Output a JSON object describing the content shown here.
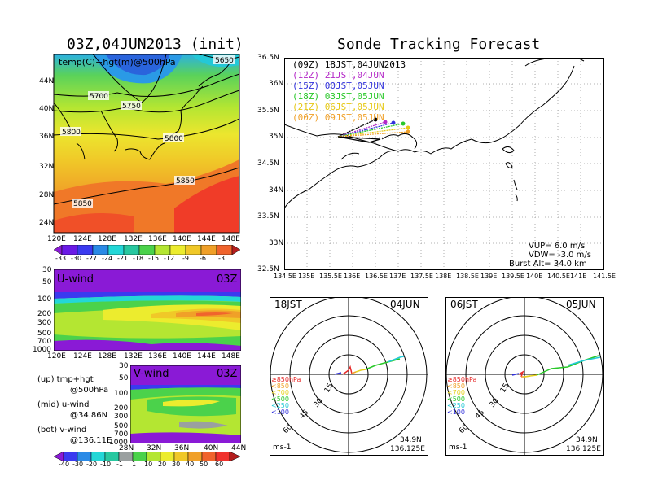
{
  "titles": {
    "left": "03Z,04JUN2013 (init)",
    "right": "Sonde Tracking Forecast"
  },
  "panel_tl": {
    "overlay_label": "temp(C)+hgt(m)@500hPa",
    "contours": [
      "5650",
      "5700",
      "5750",
      "5800",
      "5800",
      "5850",
      "5850"
    ],
    "lon_ticks": [
      "120E",
      "124E",
      "128E",
      "132E",
      "136E",
      "140E",
      "144E",
      "148E"
    ],
    "lat_ticks": [
      "44N",
      "40N",
      "36N",
      "32N",
      "28N",
      "24N"
    ],
    "colorbar_ticks": [
      "-33",
      "-30",
      "-27",
      "-24",
      "-21",
      "-18",
      "-15",
      "-12",
      "-9",
      "-6",
      "-3"
    ]
  },
  "panel_uwind": {
    "label_left": "U-wind",
    "label_right": "03Z",
    "lon_ticks": [
      "120E",
      "124E",
      "128E",
      "132E",
      "136E",
      "140E",
      "144E",
      "148E"
    ],
    "p_ticks": [
      "30",
      "50",
      "100",
      "200",
      "300",
      "500",
      "700",
      "1000"
    ]
  },
  "panel_vwind": {
    "label_left": "V-wind",
    "label_right": "03Z",
    "lat_ticks": [
      "28N",
      "32N",
      "36N",
      "40N",
      "44N"
    ],
    "p_ticks": [
      "30",
      "50",
      "100",
      "200",
      "300",
      "500",
      "700",
      "1000"
    ],
    "colorbar_ticks": [
      "-40",
      "-30",
      "-20",
      "-10",
      "-1",
      "1",
      "10",
      "20",
      "30",
      "40",
      "50",
      "60"
    ]
  },
  "legend_left": {
    "lines": [
      "(up) tmp+hgt",
      "@500hPa",
      "(mid) u-wind",
      "@34.86N",
      "(bot) v-wind",
      "@136.11E"
    ]
  },
  "colors": {
    "purple": "#8a1ad6",
    "blue": "#3a3af0",
    "cyan": "#23d7d7",
    "green": "#4bd24b",
    "yellow_green": "#b4e632",
    "yellow": "#ecec2e",
    "orange": "#f0a028",
    "red": "#f0322d",
    "dark_red": "#b41e1e"
  },
  "map": {
    "lon_ticks": [
      "134.5E",
      "135E",
      "135.5E",
      "136E",
      "136.5E",
      "137E",
      "137.5E",
      "138E",
      "138.5E",
      "139E",
      "139.5E",
      "140E",
      "140.5E",
      "141E",
      "141.5E"
    ],
    "lat_ticks": [
      "36.5N",
      "36N",
      "35.5N",
      "35N",
      "34.5N",
      "34N",
      "33.5N",
      "33N",
      "32.5N"
    ],
    "legend": [
      {
        "label": "(09Z)  18JST,04JUN2013",
        "color": "#000000"
      },
      {
        "label": "(12Z)  21JST,04JUN",
        "color": "#b428c8"
      },
      {
        "label": "(15Z)  00JST,05JUN",
        "color": "#3232dc"
      },
      {
        "label": "(18Z)  03JST,05JUN",
        "color": "#28c828"
      },
      {
        "label": "(21Z)  06JST,05JUN",
        "color": "#e6c814"
      },
      {
        "label": "(00Z)  09JST,05JUN",
        "color": "#f0a028"
      }
    ],
    "params": [
      "VUP=  6.0  m/s",
      "VDW= -3.0  m/s",
      "Burst Alt=  34.0  km"
    ]
  },
  "hodo1": {
    "label_left": "18JST",
    "label_right": "04JUN",
    "ring_labels": [
      "15",
      "30",
      "45",
      "60"
    ],
    "levels": [
      {
        "label": "≥850hPa",
        "color": "#e62828"
      },
      {
        "label": "<850",
        "color": "#f0a028"
      },
      {
        "label": "<700",
        "color": "#e6d21e"
      },
      {
        "label": "<500",
        "color": "#28c828"
      },
      {
        "label": "<250",
        "color": "#23c8d7"
      },
      {
        "label": "<100",
        "color": "#3232dc"
      }
    ],
    "unit": "ms-1",
    "lat": "34.9N",
    "lon": "136.125E"
  },
  "hodo2": {
    "label_left": "06JST",
    "label_right": "05JUN",
    "ring_labels": [
      "15",
      "30",
      "45",
      "60"
    ],
    "levels": [
      {
        "label": "≥850hPa",
        "color": "#e62828"
      },
      {
        "label": "<850",
        "color": "#f0a028"
      },
      {
        "label": "<700",
        "color": "#e6d21e"
      },
      {
        "label": "<500",
        "color": "#28c828"
      },
      {
        "label": "<250",
        "color": "#23c8d7"
      },
      {
        "label": "<100",
        "color": "#3232dc"
      }
    ],
    "unit": "ms-1",
    "lat": "34.9N",
    "lon": "136.125E"
  }
}
